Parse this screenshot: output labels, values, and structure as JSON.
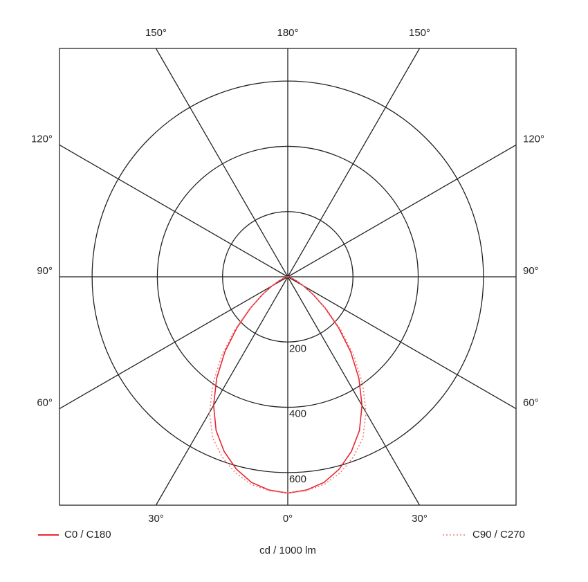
{
  "chart_data": {
    "type": "polar",
    "angles": [
      0,
      5,
      10,
      15,
      20,
      25,
      30,
      35,
      40,
      45,
      50,
      55,
      60,
      65,
      70,
      75,
      80,
      85,
      90
    ],
    "series": [
      {
        "name": "C0 / C180",
        "color": "#e8262f",
        "style": "solid",
        "values": [
          663,
          656,
          640,
          610,
          570,
          520,
          455,
          380,
          300,
          220,
          150,
          95,
          55,
          30,
          15,
          8,
          4,
          2,
          0
        ]
      },
      {
        "name": "C90 / C270",
        "color": "#f07a7a",
        "style": "dotted",
        "values": [
          663,
          658,
          646,
          622,
          588,
          545,
          480,
          400,
          315,
          230,
          155,
          98,
          56,
          30,
          15,
          8,
          4,
          2,
          0
        ]
      }
    ],
    "rlim": [
      0,
      700
    ],
    "rticks": [
      200,
      400,
      600
    ],
    "angle_ticks": [
      {
        "value": 0,
        "label": "0°"
      },
      {
        "value": 30,
        "label": "30°"
      },
      {
        "value": 60,
        "label": "60°"
      },
      {
        "value": 90,
        "label": "90°"
      },
      {
        "value": 120,
        "label": "120°"
      },
      {
        "value": 150,
        "label": "150°"
      },
      {
        "value": 180,
        "label": "180°"
      }
    ],
    "unit_label": "cd / 1000 lm"
  }
}
